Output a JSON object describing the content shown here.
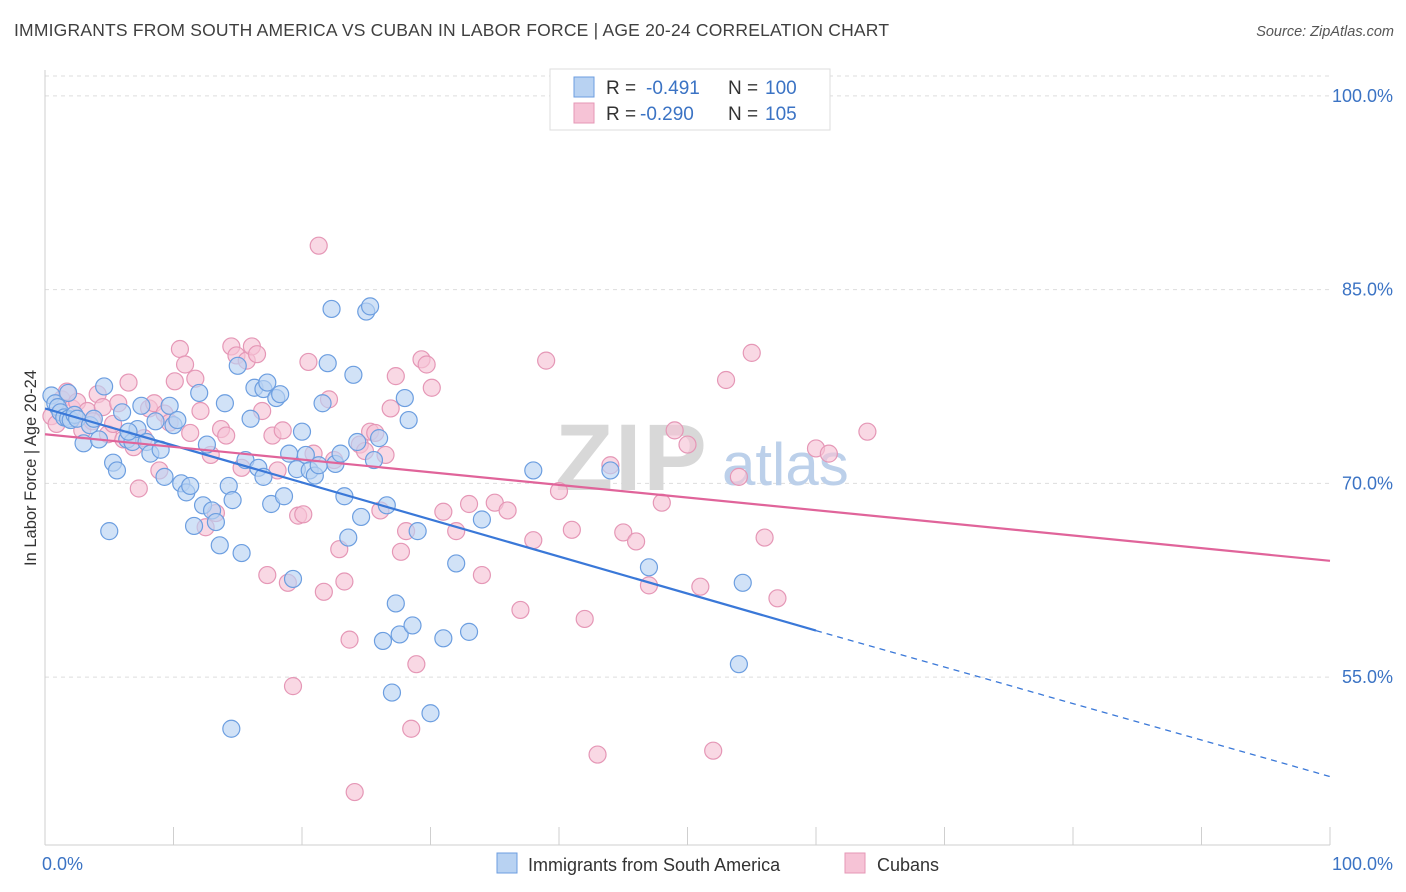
{
  "title": "IMMIGRANTS FROM SOUTH AMERICA VS CUBAN IN LABOR FORCE | AGE 20-24 CORRELATION CHART",
  "source": "Source: ZipAtlas.com",
  "watermark": {
    "main": "ZIP",
    "sub": "atlas"
  },
  "colors": {
    "blue": "#3a78d8",
    "blue_fill": "#b8d2f2",
    "pink": "#e0649a",
    "pink_fill": "#f6c3d6",
    "tick": "#3b73c4",
    "grid": "#dddddd"
  },
  "legend": {
    "rows": [
      {
        "r_label": "R = ",
        "r_value": "-0.491",
        "n_label": "N = ",
        "n_value": "100"
      },
      {
        "r_label": "R = ",
        "r_value": "-0.290",
        "n_label": "N = ",
        "n_value": "105"
      }
    ]
  },
  "bottom_legend": [
    "Immigrants from South America",
    "Cubans"
  ],
  "chart_data": {
    "type": "scatter",
    "title": "IMMIGRANTS FROM SOUTH AMERICA VS CUBAN IN LABOR FORCE | AGE 20-24 CORRELATION CHART",
    "xlabel": "",
    "ylabel": "In Labor Force | Age 20-24",
    "xlim": [
      0,
      100
    ],
    "ylim": [
      42,
      102
    ],
    "x_tick_labels": [
      "0.0%",
      "100.0%"
    ],
    "y_ticks": [
      55,
      70,
      85,
      100
    ],
    "y_tick_labels": [
      "55.0%",
      "70.0%",
      "85.0%",
      "100.0%"
    ],
    "grid": true,
    "legend_position": "top-center",
    "series": [
      {
        "name": "Immigrants from South America",
        "color": "#3a78d8",
        "trend": {
          "x0": 0,
          "y0": 75.8,
          "x1": 60,
          "y1": 58.6,
          "dash_to_x": 100,
          "dash_to_y": 47.3
        },
        "points": [
          [
            0.5,
            76.8
          ],
          [
            0.8,
            76.2
          ],
          [
            1.0,
            75.9
          ],
          [
            1.2,
            75.5
          ],
          [
            1.5,
            75.1
          ],
          [
            1.8,
            75.0
          ],
          [
            2.0,
            74.9
          ],
          [
            2.3,
            75.3
          ],
          [
            2.5,
            75.0
          ],
          [
            3.0,
            73.1
          ],
          [
            3.5,
            74.5
          ],
          [
            3.8,
            75.0
          ],
          [
            4.2,
            73.4
          ],
          [
            4.6,
            77.5
          ],
          [
            5.0,
            66.3
          ],
          [
            5.3,
            71.6
          ],
          [
            5.6,
            71.0
          ],
          [
            6.0,
            75.5
          ],
          [
            6.4,
            73.4
          ],
          [
            6.8,
            73.2
          ],
          [
            7.2,
            74.2
          ],
          [
            7.5,
            76.0
          ],
          [
            7.9,
            73.2
          ],
          [
            8.2,
            72.3
          ],
          [
            8.6,
            74.8
          ],
          [
            9.0,
            72.6
          ],
          [
            9.3,
            70.5
          ],
          [
            9.7,
            76.0
          ],
          [
            10.0,
            74.5
          ],
          [
            10.3,
            74.9
          ],
          [
            10.6,
            70.0
          ],
          [
            11.0,
            69.3
          ],
          [
            11.3,
            69.8
          ],
          [
            11.6,
            66.7
          ],
          [
            12.0,
            77.0
          ],
          [
            12.3,
            68.3
          ],
          [
            12.6,
            73.0
          ],
          [
            13.0,
            67.9
          ],
          [
            13.3,
            67.0
          ],
          [
            13.6,
            65.2
          ],
          [
            14.0,
            76.2
          ],
          [
            14.3,
            69.8
          ],
          [
            14.6,
            68.7
          ],
          [
            15.0,
            79.1
          ],
          [
            15.3,
            64.6
          ],
          [
            15.6,
            71.8
          ],
          [
            16.0,
            75.0
          ],
          [
            16.3,
            77.4
          ],
          [
            16.6,
            71.2
          ],
          [
            17.0,
            77.3
          ],
          [
            17.3,
            77.8
          ],
          [
            17.6,
            68.4
          ],
          [
            18.0,
            76.6
          ],
          [
            18.3,
            76.9
          ],
          [
            18.6,
            69.0
          ],
          [
            19.0,
            72.3
          ],
          [
            19.3,
            62.6
          ],
          [
            19.6,
            71.1
          ],
          [
            20.0,
            74.0
          ],
          [
            20.3,
            72.2
          ],
          [
            20.6,
            71.0
          ],
          [
            21.0,
            70.6
          ],
          [
            21.3,
            71.4
          ],
          [
            21.6,
            76.2
          ],
          [
            22.0,
            79.3
          ],
          [
            22.3,
            83.5
          ],
          [
            22.6,
            71.5
          ],
          [
            23.0,
            72.3
          ],
          [
            23.3,
            69.0
          ],
          [
            23.6,
            65.8
          ],
          [
            24.0,
            78.4
          ],
          [
            24.3,
            73.2
          ],
          [
            24.6,
            67.4
          ],
          [
            25.0,
            83.3
          ],
          [
            25.3,
            83.7
          ],
          [
            25.6,
            71.8
          ],
          [
            26.0,
            73.5
          ],
          [
            26.3,
            57.8
          ],
          [
            26.6,
            68.3
          ],
          [
            27.0,
            53.8
          ],
          [
            27.3,
            60.7
          ],
          [
            27.6,
            58.3
          ],
          [
            28.0,
            76.6
          ],
          [
            28.3,
            74.9
          ],
          [
            28.6,
            59.0
          ],
          [
            29.0,
            66.3
          ],
          [
            30.0,
            52.2
          ],
          [
            31.0,
            58.0
          ],
          [
            32.0,
            63.8
          ],
          [
            33.0,
            58.5
          ],
          [
            34.0,
            67.2
          ],
          [
            38.0,
            71.0
          ],
          [
            44.0,
            71.0
          ],
          [
            47.0,
            63.5
          ],
          [
            54.0,
            56.0
          ],
          [
            54.3,
            62.3
          ],
          [
            14.5,
            51.0
          ],
          [
            17.0,
            70.5
          ],
          [
            6.5,
            74.0
          ],
          [
            1.8,
            77.0
          ]
        ]
      },
      {
        "name": "Cubans",
        "color": "#e0649a",
        "trend": {
          "x0": 0,
          "y0": 73.8,
          "x1": 100,
          "y1": 64.0
        },
        "points": [
          [
            0.5,
            75.2
          ],
          [
            0.9,
            74.6
          ],
          [
            1.3,
            76.5
          ],
          [
            1.7,
            77.1
          ],
          [
            2.1,
            75.8
          ],
          [
            2.5,
            76.3
          ],
          [
            2.9,
            74.1
          ],
          [
            3.3,
            75.6
          ],
          [
            3.7,
            74.8
          ],
          [
            4.1,
            76.9
          ],
          [
            4.5,
            75.9
          ],
          [
            4.9,
            73.8
          ],
          [
            5.3,
            74.6
          ],
          [
            5.7,
            76.2
          ],
          [
            6.1,
            73.4
          ],
          [
            6.5,
            77.8
          ],
          [
            6.9,
            72.8
          ],
          [
            7.3,
            69.6
          ],
          [
            7.7,
            73.5
          ],
          [
            8.1,
            75.8
          ],
          [
            8.5,
            76.2
          ],
          [
            8.9,
            71.0
          ],
          [
            9.3,
            75.4
          ],
          [
            9.7,
            74.7
          ],
          [
            10.1,
            77.9
          ],
          [
            10.5,
            80.4
          ],
          [
            10.9,
            79.2
          ],
          [
            11.3,
            73.9
          ],
          [
            11.7,
            78.1
          ],
          [
            12.1,
            75.6
          ],
          [
            12.5,
            66.6
          ],
          [
            12.9,
            72.2
          ],
          [
            13.3,
            67.7
          ],
          [
            13.7,
            74.2
          ],
          [
            14.1,
            73.7
          ],
          [
            14.5,
            80.6
          ],
          [
            14.9,
            79.9
          ],
          [
            15.3,
            71.2
          ],
          [
            15.7,
            79.5
          ],
          [
            16.1,
            80.6
          ],
          [
            16.5,
            80.0
          ],
          [
            16.9,
            75.6
          ],
          [
            17.3,
            62.9
          ],
          [
            17.7,
            73.7
          ],
          [
            18.1,
            71.0
          ],
          [
            18.5,
            74.1
          ],
          [
            18.9,
            62.3
          ],
          [
            19.3,
            54.3
          ],
          [
            19.7,
            67.5
          ],
          [
            20.1,
            67.6
          ],
          [
            20.5,
            79.4
          ],
          [
            20.9,
            72.3
          ],
          [
            21.3,
            88.4
          ],
          [
            21.7,
            61.6
          ],
          [
            22.1,
            76.5
          ],
          [
            22.5,
            71.8
          ],
          [
            22.9,
            64.9
          ],
          [
            23.3,
            62.4
          ],
          [
            23.7,
            57.9
          ],
          [
            24.1,
            46.1
          ],
          [
            24.5,
            73.0
          ],
          [
            24.9,
            72.5
          ],
          [
            25.3,
            74.0
          ],
          [
            25.7,
            73.9
          ],
          [
            26.1,
            67.9
          ],
          [
            26.5,
            72.2
          ],
          [
            26.9,
            75.8
          ],
          [
            27.3,
            78.3
          ],
          [
            27.7,
            64.7
          ],
          [
            28.1,
            66.3
          ],
          [
            28.5,
            51.0
          ],
          [
            28.9,
            56.0
          ],
          [
            29.3,
            79.6
          ],
          [
            29.7,
            79.2
          ],
          [
            30.1,
            77.4
          ],
          [
            31.0,
            67.8
          ],
          [
            32.0,
            66.3
          ],
          [
            33.0,
            68.4
          ],
          [
            34.0,
            62.9
          ],
          [
            35.0,
            68.5
          ],
          [
            36.0,
            67.9
          ],
          [
            37.0,
            60.2
          ],
          [
            38.0,
            65.6
          ],
          [
            39.0,
            79.5
          ],
          [
            40.0,
            69.4
          ],
          [
            41.0,
            66.4
          ],
          [
            42.0,
            59.5
          ],
          [
            43.0,
            49.0
          ],
          [
            44.0,
            71.4
          ],
          [
            45.0,
            66.2
          ],
          [
            46.0,
            65.5
          ],
          [
            47.0,
            62.1
          ],
          [
            48.0,
            68.5
          ],
          [
            49.0,
            74.1
          ],
          [
            50.0,
            73.0
          ],
          [
            51.0,
            62.0
          ],
          [
            52.0,
            49.3
          ],
          [
            53.0,
            78.0
          ],
          [
            54.0,
            70.5
          ],
          [
            55.0,
            80.1
          ],
          [
            56.0,
            65.8
          ],
          [
            57.0,
            61.1
          ],
          [
            60.0,
            72.7
          ],
          [
            61.0,
            72.3
          ],
          [
            64.0,
            74.0
          ]
        ]
      }
    ]
  }
}
